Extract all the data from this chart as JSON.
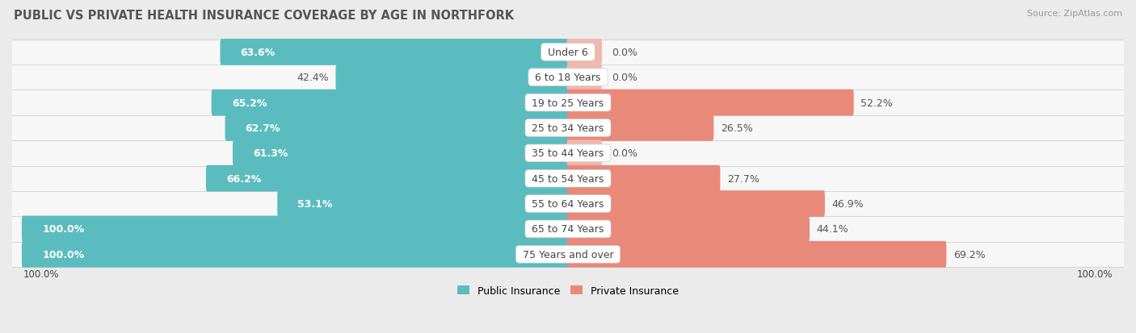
{
  "title": "PUBLIC VS PRIVATE HEALTH INSURANCE COVERAGE BY AGE IN NORTHFORK",
  "source": "Source: ZipAtlas.com",
  "categories": [
    "Under 6",
    "6 to 18 Years",
    "19 to 25 Years",
    "25 to 34 Years",
    "35 to 44 Years",
    "45 to 54 Years",
    "55 to 64 Years",
    "65 to 74 Years",
    "75 Years and over"
  ],
  "public_values": [
    63.6,
    42.4,
    65.2,
    62.7,
    61.3,
    66.2,
    53.1,
    100.0,
    100.0
  ],
  "private_values": [
    0.0,
    0.0,
    52.2,
    26.5,
    0.0,
    27.7,
    46.9,
    44.1,
    69.2
  ],
  "public_color": "#5bbcbf",
  "private_color": "#e8897a",
  "private_color_light": "#f0b8ae",
  "background_color": "#ebebeb",
  "row_bg_color": "#f7f7f7",
  "row_sep_color": "#d8d8d8",
  "max_value": 100.0,
  "bar_height": 0.58,
  "label_fontsize": 9.0,
  "title_fontsize": 10.5,
  "source_fontsize": 8.0,
  "legend_fontsize": 9.0,
  "axis_label_fontsize": 8.5,
  "cat_label_fontsize": 9.0
}
